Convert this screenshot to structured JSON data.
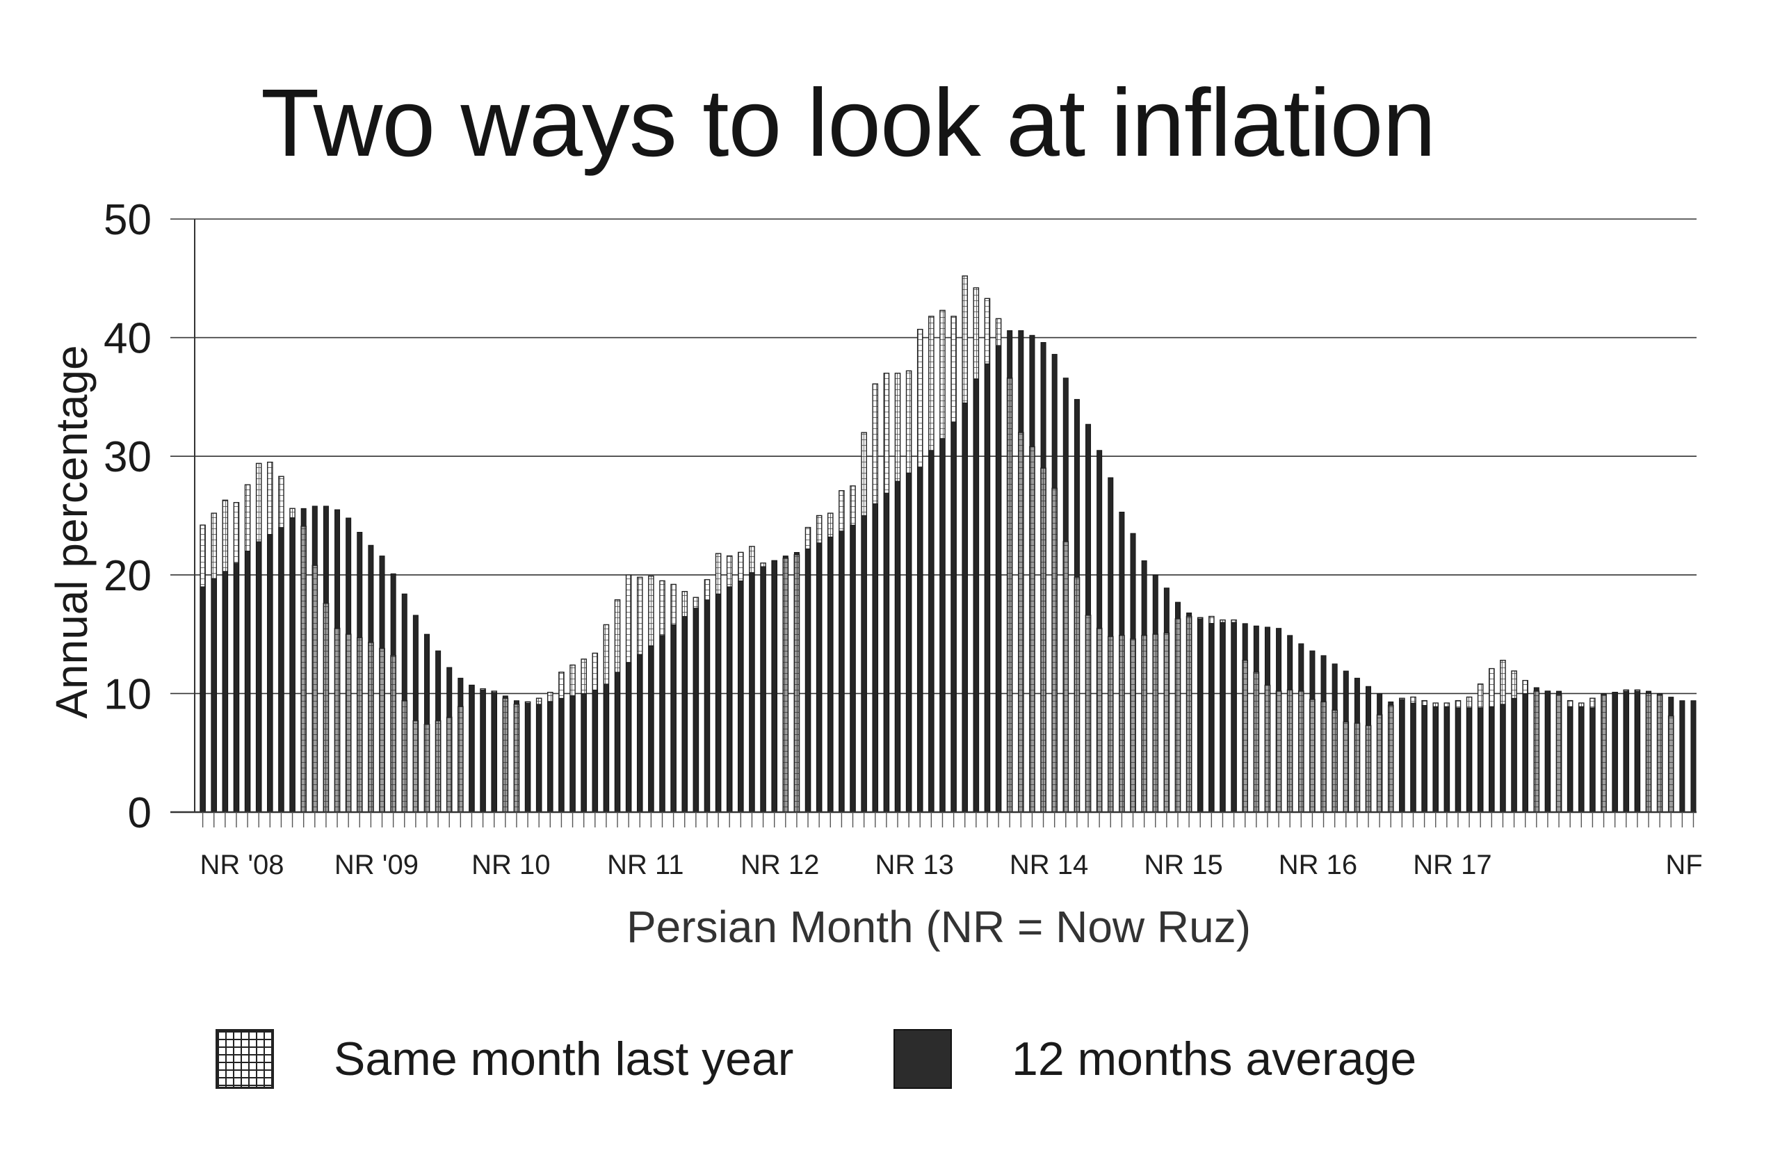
{
  "title": "Two ways to look at inflation",
  "legend": {
    "same_month": "Same month last year",
    "avg12": "12 months average"
  },
  "colors": {
    "same_month_fill": "#ffffff",
    "same_month_hatch": "#222222",
    "avg12_fill": "#262626"
  },
  "chart_data": {
    "type": "bar",
    "title": "Two ways to look at inflation",
    "xlabel": "Persian Month (NR = Now Ruz)",
    "ylabel": "Annual percentage",
    "ylim": [
      0,
      50
    ],
    "yticks": [
      0,
      10,
      20,
      30,
      40,
      50
    ],
    "grid": "horizontal",
    "legend_placement": "bottom",
    "xtick_labels": [
      "NR '08",
      "NR '09",
      "NR 10",
      "NR 11",
      "NR 12",
      "NR 13",
      "NR 14",
      "NR 15",
      "NR 16",
      "NR 17",
      "NF"
    ],
    "series": [
      {
        "name": "Same month last year",
        "values": [
          24.2,
          25.2,
          26.3,
          26.1,
          27.6,
          29.4,
          29.5,
          28.3,
          25.6,
          24.1,
          20.8,
          17.6,
          15.5,
          15,
          14.7,
          14.3,
          13.8,
          13.2,
          9.4,
          7.7,
          7.4,
          7.7,
          8,
          8.9,
          10.7,
          10.4,
          10.2,
          9.6,
          9.1,
          9.3,
          9.6,
          10.1,
          11.8,
          12.4,
          12.9,
          13.4,
          15.8,
          17.9,
          20,
          19.8,
          19.9,
          19.5,
          19.2,
          18.6,
          18.1,
          19.6,
          21.8,
          21.6,
          21.9,
          22.4,
          21,
          21.2,
          21.4,
          21.7,
          24,
          25,
          25.2,
          27.1,
          27.5,
          32,
          36.1,
          37,
          37,
          37.2,
          40.7,
          41.8,
          42.3,
          41.8,
          45.2,
          44.2,
          43.3,
          41.6,
          36.6,
          32,
          30.8,
          29,
          27.3,
          22.8,
          19.8,
          16.6,
          15.5,
          14.8,
          14.9,
          14.6,
          14.9,
          15,
          15.1,
          16.3,
          16.5,
          16.4,
          16.5,
          16.2,
          16.2,
          12.8,
          11.8,
          10.7,
          10.2,
          10.3,
          10.2,
          9.5,
          9.3,
          8.6,
          7.6,
          7.5,
          7.3,
          8.2,
          9,
          9.6,
          9.7,
          9.4,
          9.2,
          9.2,
          9.4,
          9.7,
          10.8,
          12.1,
          12.8,
          11.9,
          11.1,
          10.2,
          10.2,
          9.9,
          9.4,
          9.2,
          9.6,
          9.9,
          10.1,
          10.3,
          10.3,
          10,
          9.9,
          8.1
        ]
      },
      {
        "name": "12 months average",
        "values": [
          19,
          19.7,
          20.3,
          21,
          22,
          22.8,
          23.4,
          24,
          24.8,
          25.6,
          25.8,
          25.8,
          25.5,
          24.8,
          23.6,
          22.5,
          21.6,
          20.1,
          18.4,
          16.6,
          15,
          13.6,
          12.2,
          11.3,
          10.7,
          10.3,
          10.1,
          9.8,
          9.4,
          9.2,
          9.1,
          9.3,
          9.6,
          9.8,
          10,
          10.3,
          10.8,
          11.8,
          12.6,
          13.3,
          14,
          14.9,
          15.8,
          16.5,
          17.2,
          17.9,
          18.4,
          19,
          19.5,
          20.2,
          20.7,
          21.2,
          21.6,
          21.9,
          22.2,
          22.7,
          23.2,
          23.7,
          24.2,
          25,
          26,
          26.9,
          27.9,
          28.6,
          29.1,
          30.5,
          31.5,
          32.9,
          34.5,
          36.5,
          37.8,
          39.3,
          40.6,
          40.6,
          40.2,
          39.6,
          38.6,
          36.6,
          34.8,
          32.7,
          30.5,
          28.2,
          25.3,
          23.5,
          21.2,
          20,
          18.9,
          17.7,
          16.8,
          16.3,
          15.9,
          16,
          16,
          15.9,
          15.7,
          15.6,
          15.5,
          14.9,
          14.2,
          13.6,
          13.2,
          12.5,
          11.9,
          11.3,
          10.6,
          10,
          9.3,
          9.5,
          9.2,
          9,
          8.9,
          8.9,
          8.8,
          8.8,
          8.8,
          8.9,
          9.1,
          9.6,
          10,
          10.5,
          10.2,
          10.2,
          8.9,
          8.9,
          8.8,
          10,
          10.1,
          10.2,
          10.2,
          10.2,
          10,
          9.7,
          9.4,
          9.4
        ]
      }
    ]
  }
}
